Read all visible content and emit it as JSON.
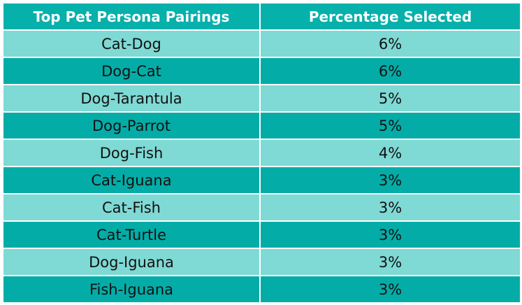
{
  "chart_data": {
    "type": "table",
    "columns": [
      "Top Pet Persona Pairings",
      "Percentage Selected"
    ],
    "rows": [
      {
        "pairing": "Cat-Dog",
        "percent": "6%"
      },
      {
        "pairing": "Dog-Cat",
        "percent": "6%"
      },
      {
        "pairing": "Dog-Tarantula",
        "percent": "5%"
      },
      {
        "pairing": "Dog-Parrot",
        "percent": "5%"
      },
      {
        "pairing": "Dog-Fish",
        "percent": "4%"
      },
      {
        "pairing": "Cat-Iguana",
        "percent": "3%"
      },
      {
        "pairing": "Cat-Fish",
        "percent": "3%"
      },
      {
        "pairing": "Cat-Turtle",
        "percent": "3%"
      },
      {
        "pairing": "Dog-Iguana",
        "percent": "3%"
      },
      {
        "pairing": "Fish-Iguana",
        "percent": "3%"
      }
    ]
  },
  "colors": {
    "header_bg": "#06b0ab",
    "row_light": "#7fd9d4",
    "row_dark": "#04aca7",
    "border": "#ffffff"
  }
}
